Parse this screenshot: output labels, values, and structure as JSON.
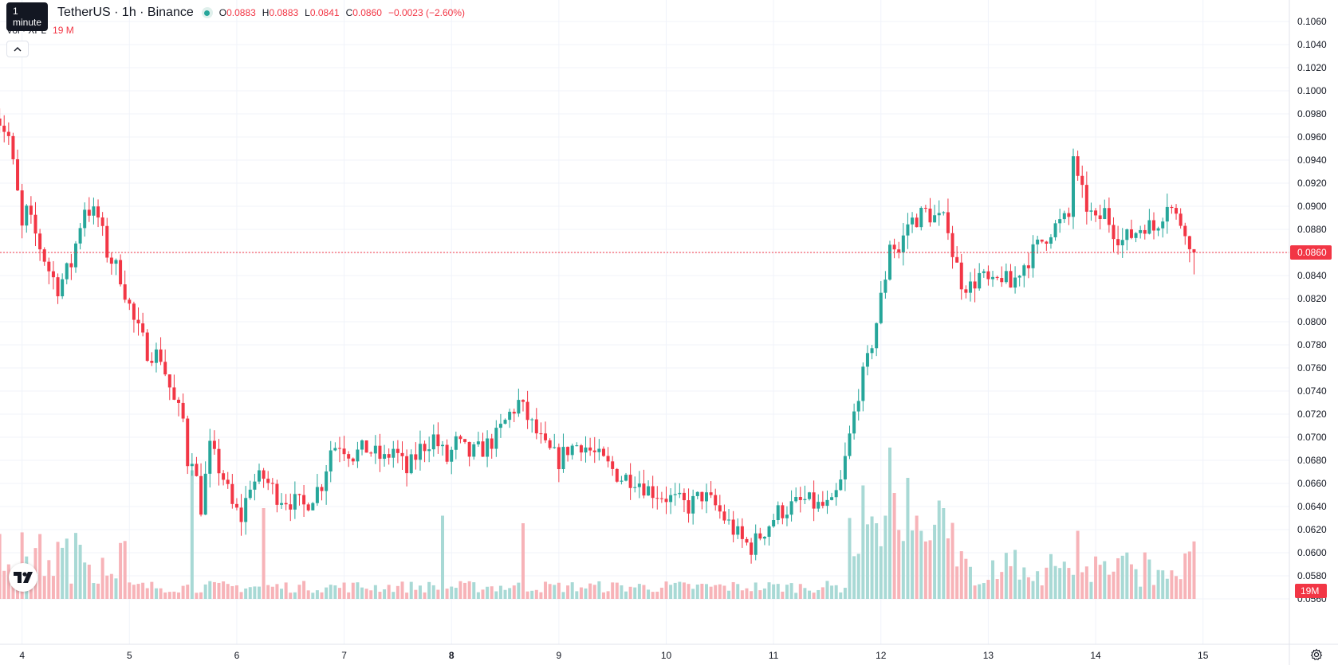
{
  "header": {
    "tooltip": "1 minute",
    "symbol_title": "TetherUS · 1h · Binance",
    "ohlc": {
      "o_label": "O",
      "o_value": "0.0883",
      "h_label": "H",
      "h_value": "0.0883",
      "l_label": "L",
      "l_value": "0.0841",
      "c_label": "C",
      "c_value": "0.0860",
      "change": "−0.0023 (−2.60%)"
    },
    "volume_label": "Vol · XPL",
    "volume_value": "19 M"
  },
  "icons": {
    "collapse": "chevron-up-icon",
    "logo": "tradingview-logo-icon",
    "settings": "settings-icon"
  },
  "colors": {
    "up": "#26a69a",
    "down": "#f23645",
    "vol_up": "#a8d9d5",
    "vol_down": "#f7b3b8",
    "grid": "#f0f3fa"
  },
  "chart_data": {
    "type": "candlestick",
    "interval": "1h",
    "ylim": [
      0.056,
      0.107
    ],
    "y_ticks": [
      "0.1060",
      "0.1040",
      "0.1020",
      "0.1000",
      "0.0980",
      "0.0960",
      "0.0940",
      "0.0920",
      "0.0900",
      "0.0880",
      "0.0860",
      "0.0840",
      "0.0820",
      "0.0800",
      "0.0780",
      "0.0760",
      "0.0740",
      "0.0720",
      "0.0700",
      "0.0680",
      "0.0660",
      "0.0640",
      "0.0620",
      "0.0600",
      "0.0580",
      "0.0560"
    ],
    "x_ticks": [
      {
        "label": "4",
        "hour": 6,
        "bold": false
      },
      {
        "label": "5",
        "hour": 30,
        "bold": false
      },
      {
        "label": "6",
        "hour": 54,
        "bold": false
      },
      {
        "label": "7",
        "hour": 78,
        "bold": false
      },
      {
        "label": "8",
        "hour": 102,
        "bold": true
      },
      {
        "label": "9",
        "hour": 126,
        "bold": false
      },
      {
        "label": "10",
        "hour": 150,
        "bold": false
      },
      {
        "label": "11",
        "hour": 174,
        "bold": false
      },
      {
        "label": "12",
        "hour": 198,
        "bold": false
      },
      {
        "label": "13",
        "hour": 222,
        "bold": false
      },
      {
        "label": "14",
        "hour": 246,
        "bold": false
      },
      {
        "label": "15",
        "hour": 270,
        "bold": false
      }
    ],
    "last_price": 0.086,
    "last_price_label": "0.0860",
    "volume_badge": "19M",
    "anchors": [
      [
        0,
        0.0995
      ],
      [
        2,
        0.0975
      ],
      [
        4,
        0.096
      ],
      [
        6,
        0.091
      ],
      [
        7,
        0.088
      ],
      [
        8,
        0.0895
      ],
      [
        10,
        0.0875
      ],
      [
        13,
        0.0845
      ],
      [
        15,
        0.083
      ],
      [
        18,
        0.085
      ],
      [
        20,
        0.0885
      ],
      [
        21,
        0.09
      ],
      [
        24,
        0.089
      ],
      [
        26,
        0.086
      ],
      [
        29,
        0.084
      ],
      [
        32,
        0.08
      ],
      [
        35,
        0.0775
      ],
      [
        38,
        0.077
      ],
      [
        41,
        0.073
      ],
      [
        43,
        0.0715
      ],
      [
        44,
        0.068
      ],
      [
        45,
        0.0685
      ],
      [
        47,
        0.064
      ],
      [
        49,
        0.069
      ],
      [
        52,
        0.0665
      ],
      [
        54,
        0.064
      ],
      [
        56,
        0.063
      ],
      [
        58,
        0.066
      ],
      [
        61,
        0.0665
      ],
      [
        64,
        0.065
      ],
      [
        67,
        0.0645
      ],
      [
        70,
        0.064
      ],
      [
        74,
        0.066
      ],
      [
        76,
        0.069
      ],
      [
        78,
        0.0695
      ],
      [
        81,
        0.0685
      ],
      [
        84,
        0.069
      ],
      [
        88,
        0.068
      ],
      [
        90,
        0.069
      ],
      [
        93,
        0.067
      ],
      [
        96,
        0.069
      ],
      [
        99,
        0.07
      ],
      [
        102,
        0.068
      ],
      [
        104,
        0.0695
      ],
      [
        107,
        0.0685
      ],
      [
        110,
        0.069
      ],
      [
        113,
        0.07
      ],
      [
        116,
        0.072
      ],
      [
        118,
        0.073
      ],
      [
        121,
        0.071
      ],
      [
        124,
        0.069
      ],
      [
        127,
        0.068
      ],
      [
        129,
        0.069
      ],
      [
        132,
        0.0695
      ],
      [
        135,
        0.0685
      ],
      [
        138,
        0.0675
      ],
      [
        141,
        0.0665
      ],
      [
        144,
        0.0665
      ],
      [
        147,
        0.0655
      ],
      [
        150,
        0.065
      ],
      [
        153,
        0.0645
      ],
      [
        156,
        0.064
      ],
      [
        159,
        0.065
      ],
      [
        162,
        0.064
      ],
      [
        165,
        0.0625
      ],
      [
        168,
        0.061
      ],
      [
        170,
        0.0605
      ],
      [
        173,
        0.062
      ],
      [
        176,
        0.0635
      ],
      [
        179,
        0.064
      ],
      [
        182,
        0.0645
      ],
      [
        185,
        0.064
      ],
      [
        188,
        0.064
      ],
      [
        190,
        0.066
      ],
      [
        192,
        0.07
      ],
      [
        194,
        0.074
      ],
      [
        196,
        0.0765
      ],
      [
        198,
        0.08
      ],
      [
        200,
        0.084
      ],
      [
        201,
        0.087
      ],
      [
        203,
        0.086
      ],
      [
        205,
        0.0885
      ],
      [
        207,
        0.089
      ],
      [
        209,
        0.0895
      ],
      [
        211,
        0.089
      ],
      [
        214,
        0.0885
      ],
      [
        215,
        0.086
      ],
      [
        217,
        0.0835
      ],
      [
        219,
        0.083
      ],
      [
        221,
        0.084
      ],
      [
        224,
        0.083
      ],
      [
        226,
        0.084
      ],
      [
        228,
        0.083
      ],
      [
        230,
        0.0845
      ],
      [
        233,
        0.086
      ],
      [
        235,
        0.087
      ],
      [
        237,
        0.088
      ],
      [
        239,
        0.0885
      ],
      [
        241,
        0.089
      ],
      [
        242,
        0.0945
      ],
      [
        243,
        0.092
      ],
      [
        245,
        0.09
      ],
      [
        247,
        0.0885
      ],
      [
        249,
        0.0895
      ],
      [
        251,
        0.088
      ],
      [
        253,
        0.087
      ],
      [
        255,
        0.0875
      ],
      [
        258,
        0.0885
      ],
      [
        260,
        0.088
      ],
      [
        262,
        0.0895
      ],
      [
        263,
        0.0905
      ],
      [
        265,
        0.089
      ],
      [
        267,
        0.0883
      ],
      [
        268,
        0.086
      ]
    ]
  }
}
